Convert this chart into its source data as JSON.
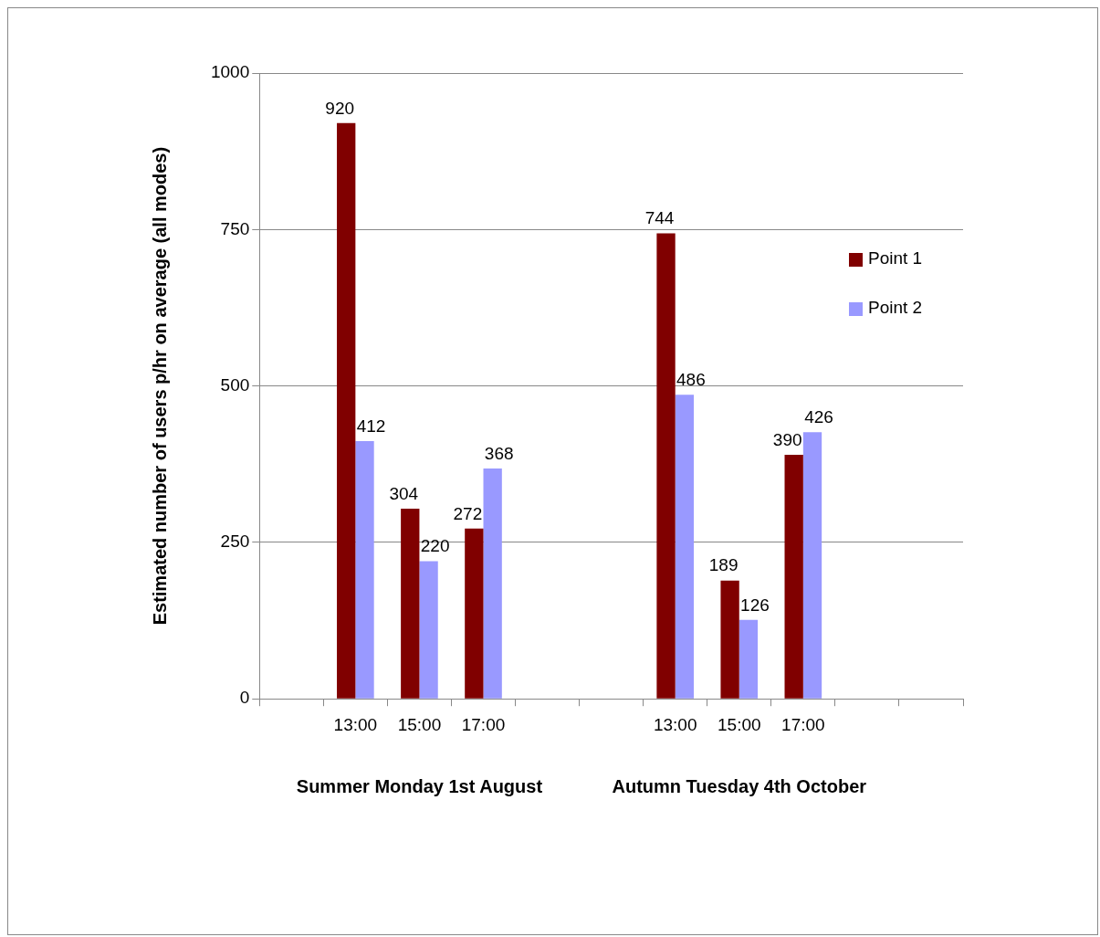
{
  "chart_data": {
    "type": "bar",
    "ylabel": "Estimated number of users p/hr on average (all modes)",
    "categories": [
      null,
      "13:00",
      "15:00",
      "17:00",
      null,
      null,
      "13:00",
      "15:00",
      "17:00",
      null,
      null
    ],
    "series": [
      {
        "name": "Point 1",
        "color": "#800000",
        "values": [
          null,
          920,
          304,
          272,
          null,
          null,
          744,
          189,
          390,
          null,
          null
        ]
      },
      {
        "name": "Point 2",
        "color": "#9999ff",
        "values": [
          null,
          412,
          220,
          368,
          null,
          null,
          486,
          126,
          426,
          null,
          null
        ]
      }
    ],
    "ylim": [
      0,
      1000
    ],
    "yticks": [
      0,
      250,
      500,
      750,
      1000
    ],
    "grid": "y",
    "legend": "top right",
    "data_labels": true,
    "annotations": [
      "Summer Monday 1st August",
      "Autumn Tuesday 4th October"
    ]
  }
}
